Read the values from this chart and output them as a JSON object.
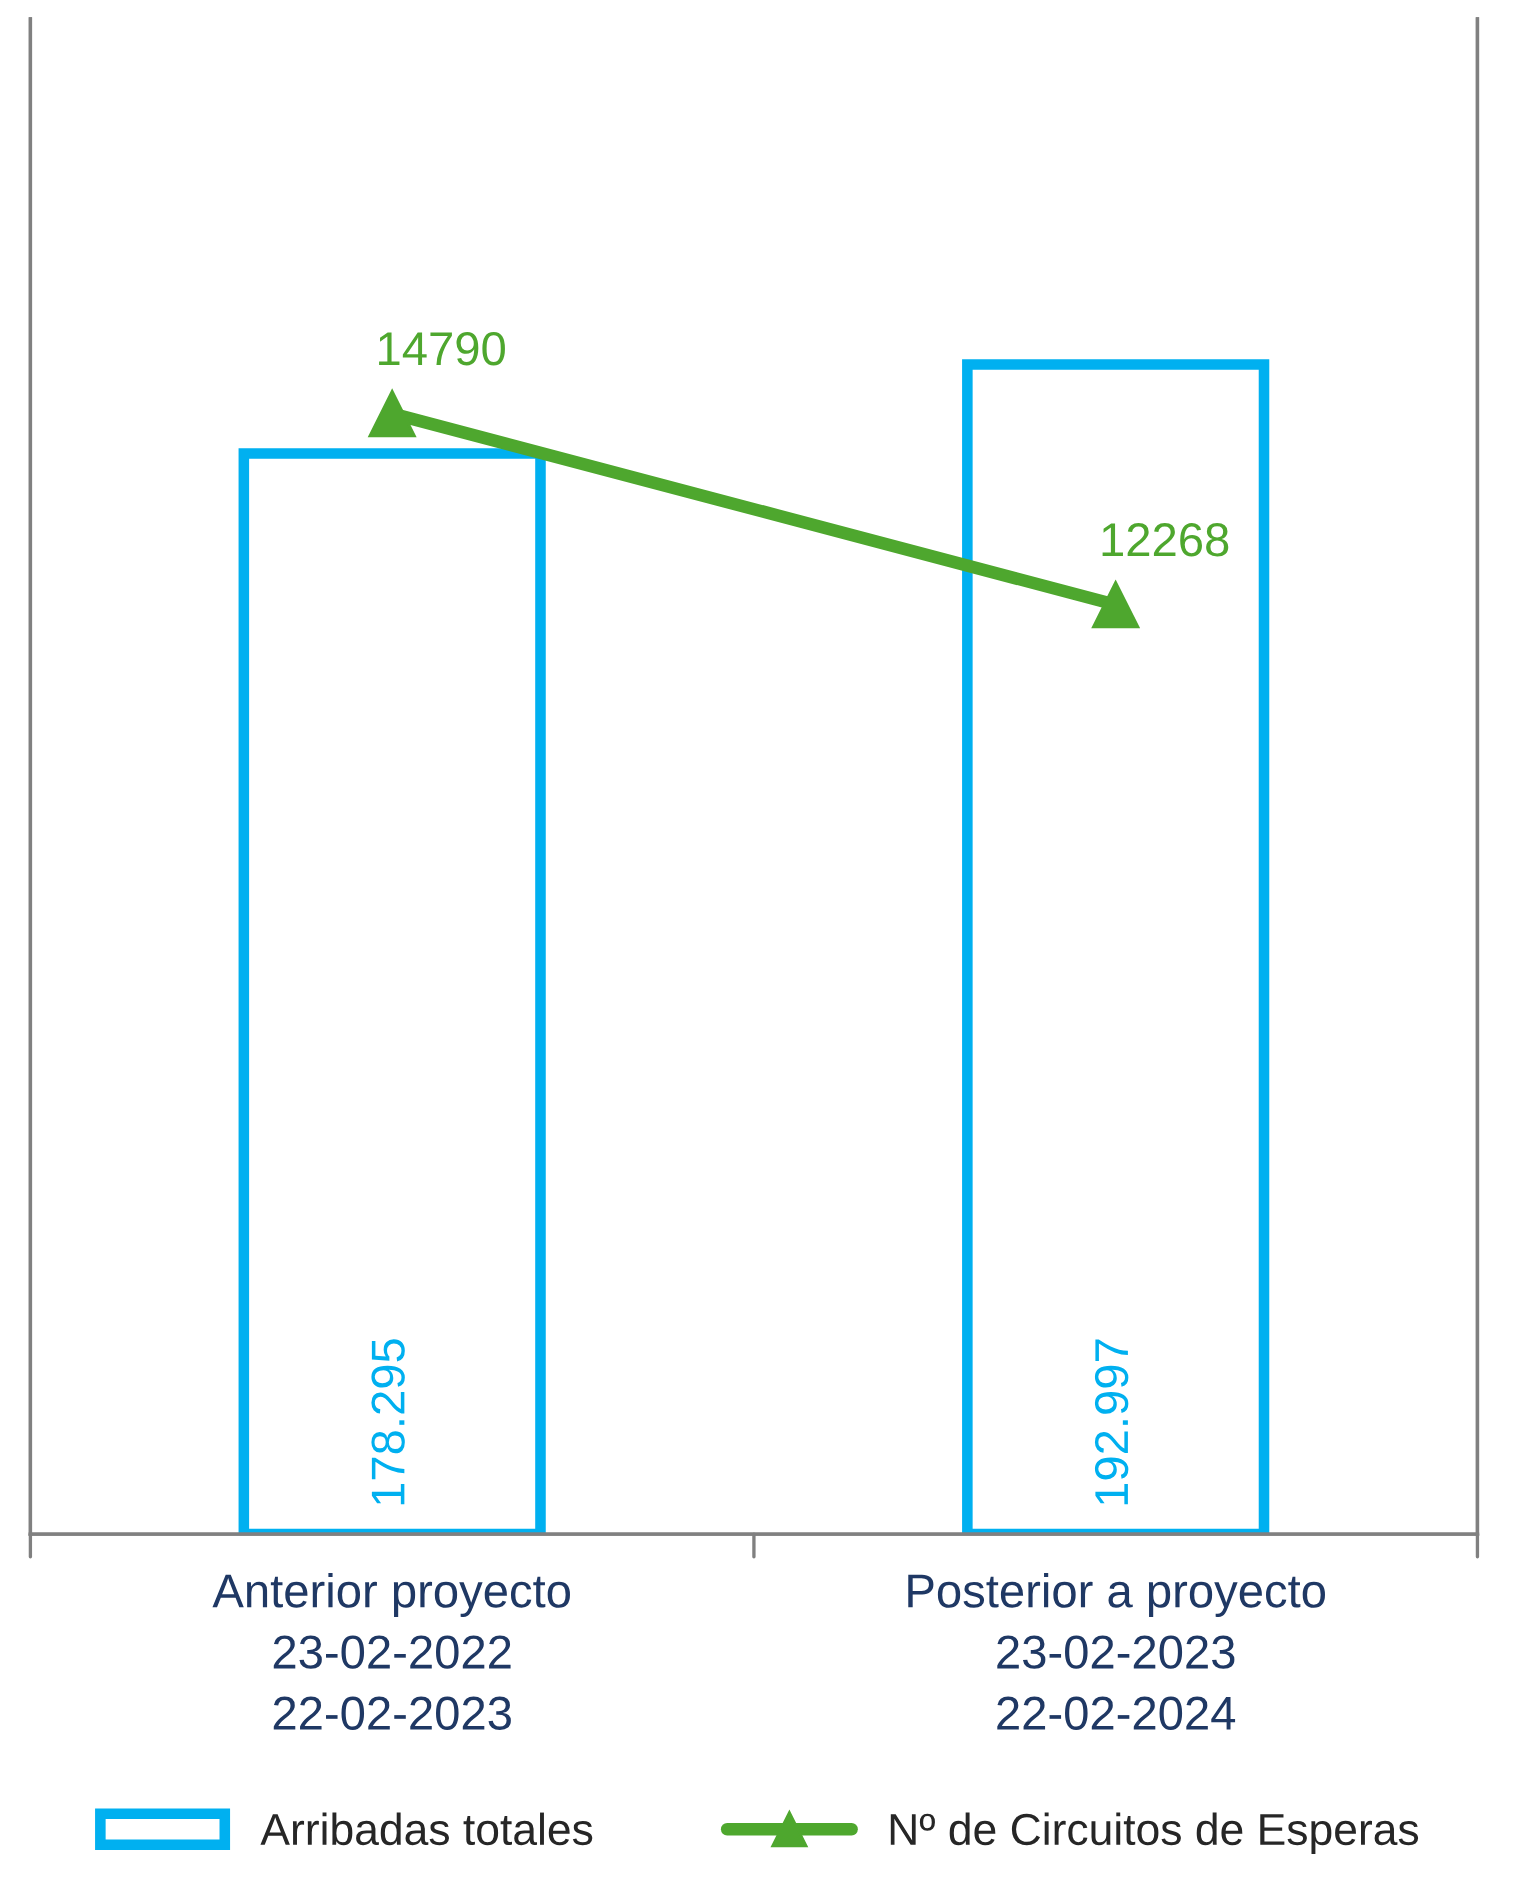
{
  "chart_data": {
    "type": "bar",
    "categories": [
      "Anterior proyecto\n23-02-2022\n22-02-2023",
      "Posterior a proyecto\n23-02-2023\n22-02-2024"
    ],
    "series": [
      {
        "name": "Arribadas totales",
        "color": "#00b0f0",
        "values": [
          178295,
          192997
        ],
        "value_labels": [
          "178.295",
          "192.997"
        ]
      },
      {
        "name": "Nº de Circuitos de Esperas",
        "type": "line",
        "axis": "y2",
        "color": "#4ea72e",
        "values": [
          14790,
          12268
        ],
        "marker": "triangle"
      }
    ],
    "ylim": [
      0,
      250000
    ],
    "y2lim": [
      0,
      20000
    ],
    "data_labels": true,
    "legend": "bottom",
    "grid": false,
    "tick_labels": "x"
  }
}
